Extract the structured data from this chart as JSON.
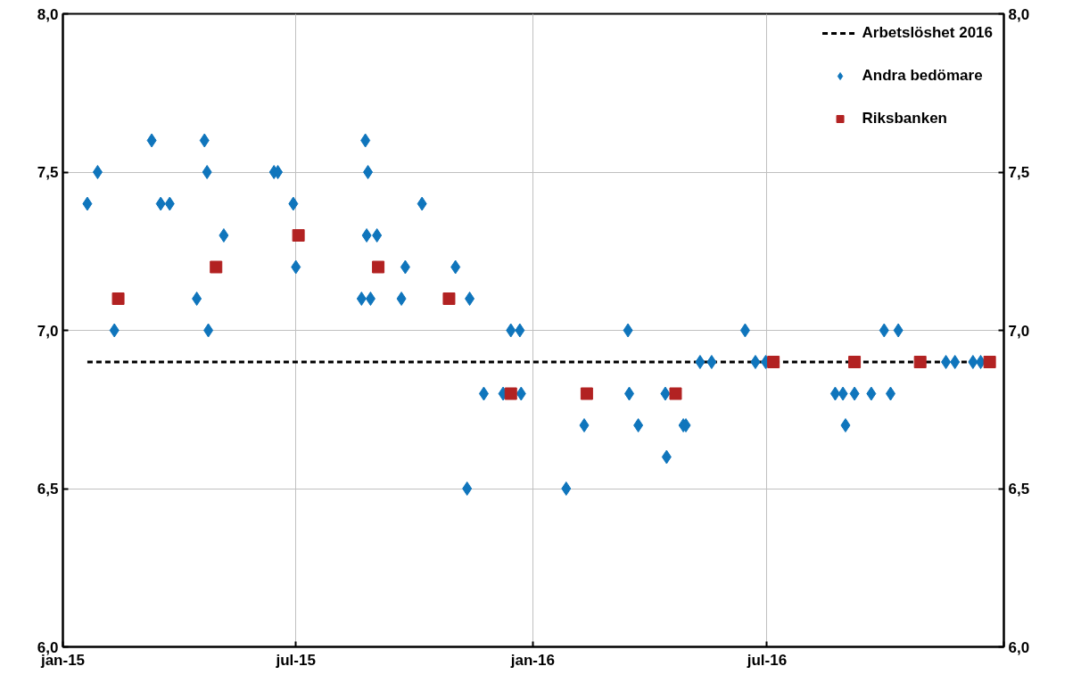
{
  "chart_data": {
    "type": "scatter",
    "xlim": [
      "2015-01-01",
      "2017-01-01"
    ],
    "xticks": [
      {
        "value": "2015-01-01",
        "label": "jan-15"
      },
      {
        "value": "2015-07-01",
        "label": "jul-15"
      },
      {
        "value": "2016-01-01",
        "label": "jan-16"
      },
      {
        "value": "2016-07-01",
        "label": "jul-16"
      },
      {
        "value": "2017-01-01",
        "label": null
      }
    ],
    "ylim": [
      6.0,
      8.0
    ],
    "yticks": [
      {
        "value": 6.0,
        "label": "6,0"
      },
      {
        "value": 6.5,
        "label": "6,5"
      },
      {
        "value": 7.0,
        "label": "7,0"
      },
      {
        "value": 7.5,
        "label": "7,5"
      },
      {
        "value": 8.0,
        "label": "8,0"
      }
    ],
    "y2lim": [
      6.0,
      8.0
    ],
    "y2ticks": [
      {
        "value": 6.0,
        "label": "6,0"
      },
      {
        "value": 6.5,
        "label": "6,5"
      },
      {
        "value": 7.0,
        "label": "7,0"
      },
      {
        "value": 7.5,
        "label": "7,5"
      },
      {
        "value": 8.0,
        "label": "8,0"
      }
    ],
    "grid": true,
    "legend": "top right",
    "series": [
      {
        "name": "Arbetslöshet 2016",
        "type": "line",
        "color": "#000000",
        "line_style": "dashed",
        "marker": "none",
        "x": [
          "2015-01-20",
          "2016-12-21"
        ],
        "values": [
          6.9,
          6.9
        ]
      },
      {
        "name": "Andra bedömare",
        "color": "#0f75bc",
        "marker": "diamond",
        "x": [
          "2015-01-20",
          "2015-01-28",
          "2015-02-10",
          "2015-03-11",
          "2015-03-18",
          "2015-03-25",
          "2015-04-15",
          "2015-04-21",
          "2015-04-23",
          "2015-04-24",
          "2015-05-06",
          "2015-06-14",
          "2015-06-17",
          "2015-06-29",
          "2015-07-01",
          "2015-08-21",
          "2015-08-24",
          "2015-08-26",
          "2015-08-25",
          "2015-08-28",
          "2015-09-02",
          "2015-09-21",
          "2015-09-24",
          "2015-10-07",
          "2015-11-02",
          "2015-11-11",
          "2015-11-13",
          "2015-11-24",
          "2015-12-09",
          "2015-12-15",
          "2015-12-22",
          "2015-12-23",
          "2016-01-27",
          "2016-02-10",
          "2016-03-15",
          "2016-03-16",
          "2016-03-23",
          "2016-04-14",
          "2016-04-13",
          "2016-04-27",
          "2016-04-29",
          "2016-05-10",
          "2016-05-19",
          "2016-06-14",
          "2016-06-22",
          "2016-06-30",
          "2016-08-23",
          "2016-08-29",
          "2016-08-31",
          "2016-09-07",
          "2016-09-20",
          "2016-09-30",
          "2016-10-05",
          "2016-10-11",
          "2016-11-17",
          "2016-11-24",
          "2016-12-08",
          "2016-12-14"
        ],
        "values": [
          7.4,
          7.5,
          7.0,
          7.6,
          7.4,
          7.4,
          7.1,
          7.6,
          7.5,
          7.0,
          7.3,
          7.5,
          7.5,
          7.4,
          7.2,
          7.1,
          7.6,
          7.5,
          7.3,
          7.1,
          7.3,
          7.1,
          7.2,
          7.4,
          7.2,
          6.5,
          7.1,
          6.8,
          6.8,
          7.0,
          7.0,
          6.8,
          6.5,
          6.7,
          7.0,
          6.8,
          6.7,
          6.6,
          6.8,
          6.7,
          6.7,
          6.9,
          6.9,
          7.0,
          6.9,
          6.9,
          6.8,
          6.8,
          6.7,
          6.8,
          6.8,
          7.0,
          6.8,
          7.0,
          6.9,
          6.9,
          6.9,
          6.9
        ]
      },
      {
        "name": "Riksbanken",
        "color": "#b22222",
        "marker": "square",
        "x": [
          "2015-02-13",
          "2015-04-30",
          "2015-07-03",
          "2015-09-03",
          "2015-10-28",
          "2015-12-15",
          "2016-02-12",
          "2016-04-21",
          "2016-07-06",
          "2016-09-07",
          "2016-10-28",
          "2016-12-21"
        ],
        "values": [
          7.1,
          7.2,
          7.3,
          7.2,
          7.1,
          6.8,
          6.8,
          6.8,
          6.9,
          6.9,
          6.9,
          6.9
        ]
      }
    ]
  }
}
